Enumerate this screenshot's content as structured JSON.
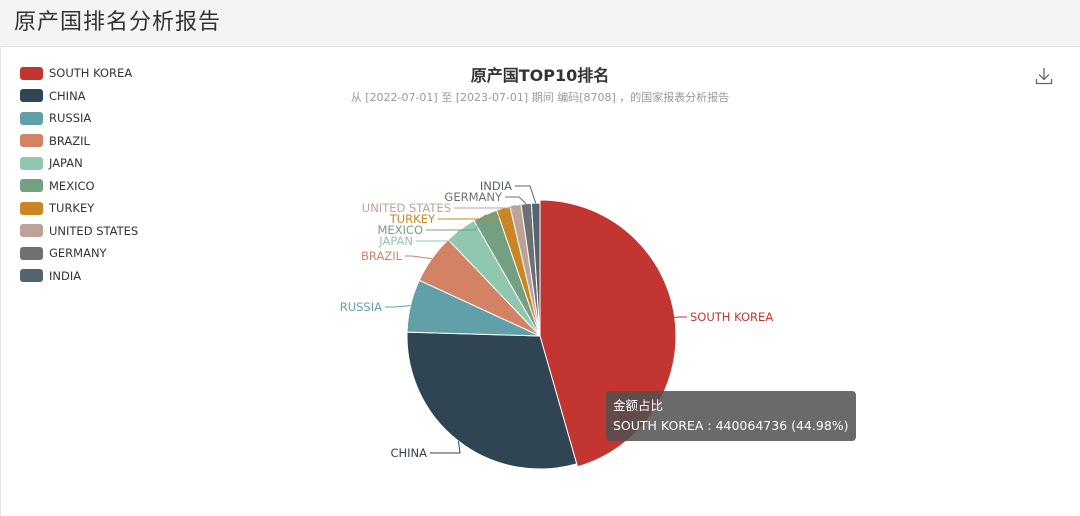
{
  "page": {
    "title": "原产国排名分析报告"
  },
  "toolbar": {
    "download_icon": "download-icon"
  },
  "chart_data": {
    "type": "pie",
    "title": "原产国TOP10排名",
    "subtitle": "从 [2022-07-01] 至 [2023-07-01] 期间 编码[8708] ，的国家报表分析报告",
    "legend_position": "top-left",
    "categories": [
      "SOUTH KOREA",
      "CHINA",
      "RUSSIA",
      "BRAZIL",
      "JAPAN",
      "MEXICO",
      "TURKEY",
      "UNITED STATES",
      "GERMANY",
      "INDIA"
    ],
    "values": [
      440064736,
      289000000,
      62000000,
      58000000,
      37000000,
      29000000,
      16000000,
      13000000,
      12000000,
      10000000
    ],
    "colors": [
      "#c23531",
      "#2f4554",
      "#61a0a8",
      "#d48265",
      "#91c7ae",
      "#749f83",
      "#ca8622",
      "#bda29a",
      "#6e7074",
      "#546570"
    ],
    "tooltip": {
      "title": "金额占比",
      "text": "SOUTH KOREA : 440064736 (44.98%)"
    }
  }
}
